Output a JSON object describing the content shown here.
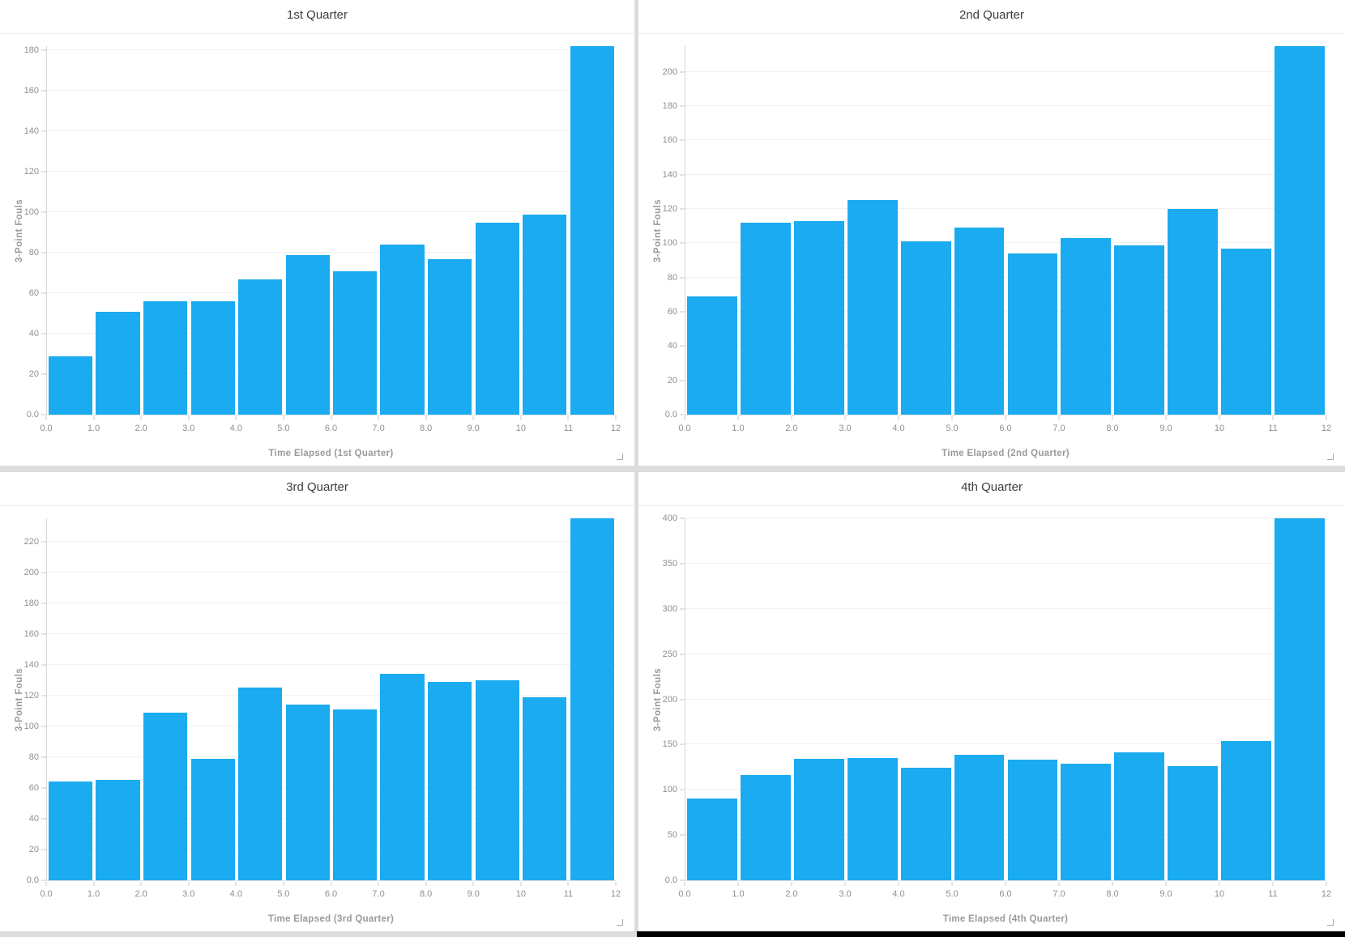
{
  "page": {
    "background": "#dcdcdc",
    "panel_background": "#ffffff",
    "bottom_strip_color": "#000000"
  },
  "chart_defaults": {
    "bar_color": "#1aabf0",
    "grid_color": "#f1f1f1",
    "axis_line_color": "#d6d6d6",
    "tick_mark_color": "#c9c9c9",
    "tick_label_color": "#8f8f8f",
    "axis_title_color": "#9a9a9a",
    "panel_title_color": "#3e3e3e",
    "x_ticks": [
      "0.0",
      "1.0",
      "2.0",
      "3.0",
      "4.0",
      "5.0",
      "6.0",
      "7.0",
      "8.0",
      "9.0",
      "10",
      "11",
      "12"
    ],
    "zero_tick_label": "0.0"
  },
  "chart_data": [
    {
      "type": "bar",
      "title": "1st Quarter",
      "xlabel": "Time Elapsed (1st Quarter)",
      "ylabel": "3-Point Fouls",
      "bin_edges": [
        0,
        1,
        2,
        3,
        4,
        5,
        6,
        7,
        8,
        9,
        10,
        11,
        12
      ],
      "values": [
        29,
        51,
        56,
        56,
        67,
        79,
        71,
        84,
        77,
        95,
        99,
        182
      ],
      "y_ticks": [
        0,
        20,
        40,
        60,
        80,
        100,
        120,
        140,
        160,
        180
      ],
      "ylim": [
        0,
        182
      ],
      "xlim": [
        0,
        12
      ],
      "grid": true,
      "legend": "none"
    },
    {
      "type": "bar",
      "title": "2nd Quarter",
      "xlabel": "Time Elapsed (2nd Quarter)",
      "ylabel": "3-Point Fouls",
      "bin_edges": [
        0,
        1,
        2,
        3,
        4,
        5,
        6,
        7,
        8,
        9,
        10,
        11,
        12
      ],
      "values": [
        69,
        112,
        113,
        125,
        101,
        109,
        94,
        103,
        99,
        120,
        97,
        215
      ],
      "y_ticks": [
        0,
        20,
        40,
        60,
        80,
        100,
        120,
        140,
        160,
        180,
        200
      ],
      "ylim": [
        0,
        215
      ],
      "xlim": [
        0,
        12
      ],
      "grid": true,
      "legend": "none"
    },
    {
      "type": "bar",
      "title": "3rd Quarter",
      "xlabel": "Time Elapsed (3rd Quarter)",
      "ylabel": "3-Point Fouls",
      "bin_edges": [
        0,
        1,
        2,
        3,
        4,
        5,
        6,
        7,
        8,
        9,
        10,
        11,
        12
      ],
      "values": [
        64,
        65,
        109,
        79,
        125,
        114,
        111,
        134,
        129,
        130,
        119,
        235
      ],
      "y_ticks": [
        0,
        20,
        40,
        60,
        80,
        100,
        120,
        140,
        160,
        180,
        200,
        220
      ],
      "ylim": [
        0,
        235
      ],
      "xlim": [
        0,
        12
      ],
      "grid": true,
      "legend": "none"
    },
    {
      "type": "bar",
      "title": "4th Quarter",
      "xlabel": "Time Elapsed (4th Quarter)",
      "ylabel": "3-Point Fouls",
      "bin_edges": [
        0,
        1,
        2,
        3,
        4,
        5,
        6,
        7,
        8,
        9,
        10,
        11,
        12
      ],
      "values": [
        90,
        116,
        134,
        135,
        124,
        139,
        133,
        129,
        141,
        126,
        154,
        400
      ],
      "y_ticks": [
        0,
        50,
        100,
        150,
        200,
        250,
        300,
        350,
        400
      ],
      "ylim": [
        0,
        400
      ],
      "xlim": [
        0,
        12
      ],
      "grid": true,
      "legend": "none"
    }
  ]
}
